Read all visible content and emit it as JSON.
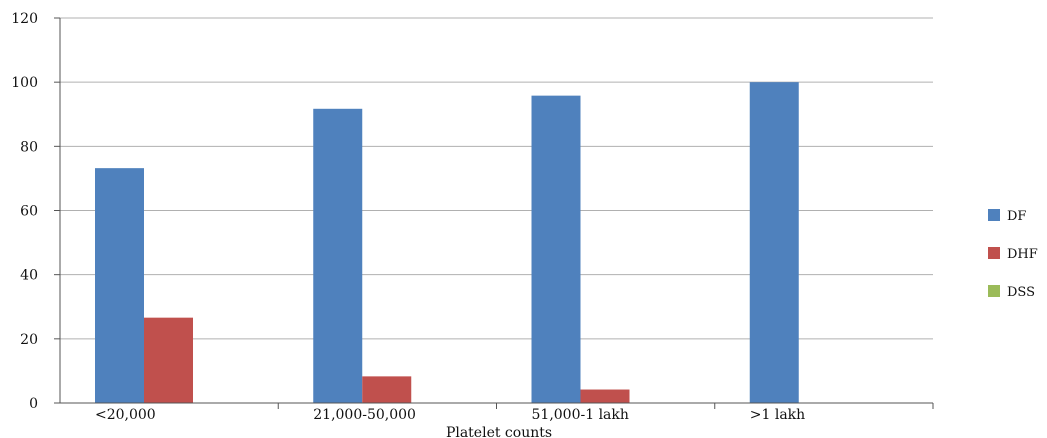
{
  "chart_data": {
    "type": "bar",
    "xlabel": "Platelet counts",
    "ylabel": "",
    "ylim": [
      0,
      120
    ],
    "yticks": [
      0,
      20,
      40,
      60,
      80,
      100,
      120
    ],
    "grid": true,
    "legend_position": "right",
    "categories": [
      "<20,000",
      "21,000-50,000",
      "51,000-1 lakh",
      ">1 lakh"
    ],
    "series": [
      {
        "name": "DF",
        "color": "#4f81bd",
        "values": [
          73.2,
          91.7,
          95.8,
          100
        ]
      },
      {
        "name": "DHF",
        "color": "#c0504d",
        "values": [
          26.6,
          8.3,
          4.2,
          0
        ]
      },
      {
        "name": "DSS",
        "color": "#9bbb59",
        "values": [
          0,
          0,
          0,
          0
        ]
      }
    ]
  }
}
